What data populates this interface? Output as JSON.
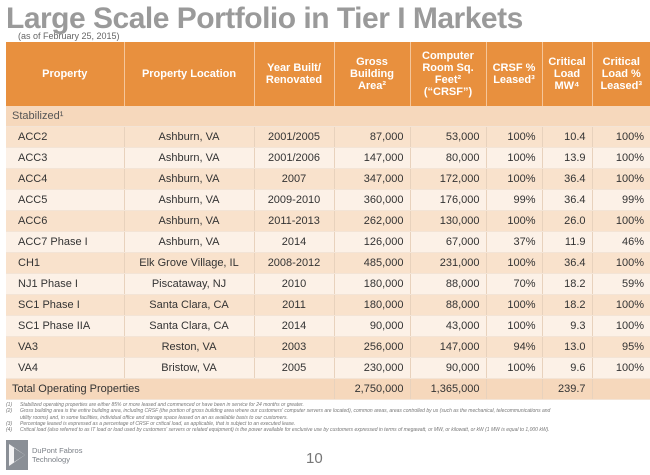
{
  "header": {
    "title": "Large Scale Portfolio in Tier I Markets",
    "subtitle": "(as of February 25, 2015)"
  },
  "table": {
    "columns": [
      "Property",
      "Property Location",
      "Year Built/ Renovated",
      "Gross Building Area²",
      "Computer Room Sq. Feet² (“CRSF”)",
      "CRSF % Leased³",
      "Critical Load MW⁴",
      "Critical Load % Leased³"
    ],
    "section_label": "Stabilized¹",
    "rows": [
      [
        "ACC2",
        "Ashburn, VA",
        "2001/2005",
        "87,000",
        "53,000",
        "100%",
        "10.4",
        "100%"
      ],
      [
        "ACC3",
        "Ashburn, VA",
        "2001/2006",
        "147,000",
        "80,000",
        "100%",
        "13.9",
        "100%"
      ],
      [
        "ACC4",
        "Ashburn, VA",
        "2007",
        "347,000",
        "172,000",
        "100%",
        "36.4",
        "100%"
      ],
      [
        "ACC5",
        "Ashburn, VA",
        "2009-2010",
        "360,000",
        "176,000",
        "99%",
        "36.4",
        "99%"
      ],
      [
        "ACC6",
        "Ashburn, VA",
        "2011-2013",
        "262,000",
        "130,000",
        "100%",
        "26.0",
        "100%"
      ],
      [
        "ACC7 Phase I",
        "Ashburn, VA",
        "2014",
        "126,000",
        "67,000",
        "37%",
        "11.9",
        "46%"
      ],
      [
        "CH1",
        "Elk Grove Village, IL",
        "2008-2012",
        "485,000",
        "231,000",
        "100%",
        "36.4",
        "100%"
      ],
      [
        "NJ1 Phase I",
        "Piscataway, NJ",
        "2010",
        "180,000",
        "88,000",
        "70%",
        "18.2",
        "59%"
      ],
      [
        "SC1 Phase I",
        "Santa Clara, CA",
        "2011",
        "180,000",
        "88,000",
        "100%",
        "18.2",
        "100%"
      ],
      [
        "SC1 Phase IIA",
        "Santa Clara, CA",
        "2014",
        "90,000",
        "43,000",
        "100%",
        "9.3",
        "100%"
      ],
      [
        "VA3",
        "Reston, VA",
        "2003",
        "256,000",
        "147,000",
        "94%",
        "13.0",
        "95%"
      ],
      [
        "VA4",
        "Bristow, VA",
        "2005",
        "230,000",
        "90,000",
        "100%",
        "9.6",
        "100%"
      ]
    ],
    "total": {
      "label": "Total Operating Properties",
      "gross_area": "2,750,000",
      "crsf": "1,365,000",
      "critical_load": "239.7"
    }
  },
  "footnotes": [
    {
      "num": "(1)",
      "text": "Stabilized operating properties are either 85% or more leased and commenced or have been in service for 24 months or greater."
    },
    {
      "num": "(2)",
      "text": "Gross building area is the entire building area, including CRSF (the portion of gross building area where our customers' computer servers are located), common areas, areas controlled by us (such as the mechanical, telecommunications and"
    },
    {
      "num": "",
      "text": "utility rooms) and, in some facilities, individual office and storage space leased on an as available basis to our customers."
    },
    {
      "num": "(3)",
      "text": "Percentage leased is expressed as a percentage of CRSF or critical load, as applicable, that is subject to an executed lease."
    },
    {
      "num": "(4)",
      "text": "Critical load (also referred to as IT load or load used by customers' servers or related equipment) is the power available for exclusive use by customers expressed in terms of megawatt, or MW, or kilowatt, or kW (1 MW is equal to 1,000 kW)."
    }
  ],
  "footer": {
    "logo_line1": "DuPont Fabros",
    "logo_line2": "Technology",
    "page_number": "10"
  }
}
